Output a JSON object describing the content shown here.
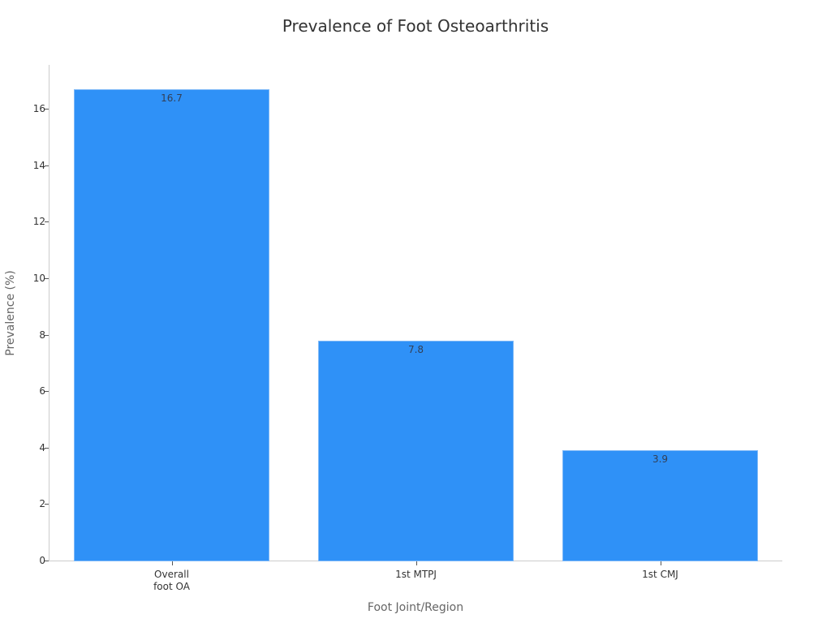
{
  "chart_data": {
    "type": "bar",
    "title": "Prevalence of Foot Osteoarthritis",
    "xlabel": "Foot Joint/Region",
    "ylabel": "Prevalence (%)",
    "categories": [
      "Overall\nfoot OA",
      "1st MTPJ",
      "1st CMJ"
    ],
    "values": [
      16.7,
      7.8,
      3.9
    ],
    "data_labels": [
      "16.7",
      "7.8",
      "3.9"
    ],
    "ylim": [
      0,
      17.5
    ],
    "yticks": [
      0,
      2,
      4,
      6,
      8,
      10,
      12,
      14,
      16
    ],
    "ytick_labels": [
      "0",
      "2",
      "4",
      "6",
      "8",
      "10",
      "12",
      "14",
      "16"
    ],
    "grid": false,
    "legend": null,
    "colors": {
      "bar": "#2f91f7",
      "bar_edge": "#7fb9f7"
    }
  }
}
